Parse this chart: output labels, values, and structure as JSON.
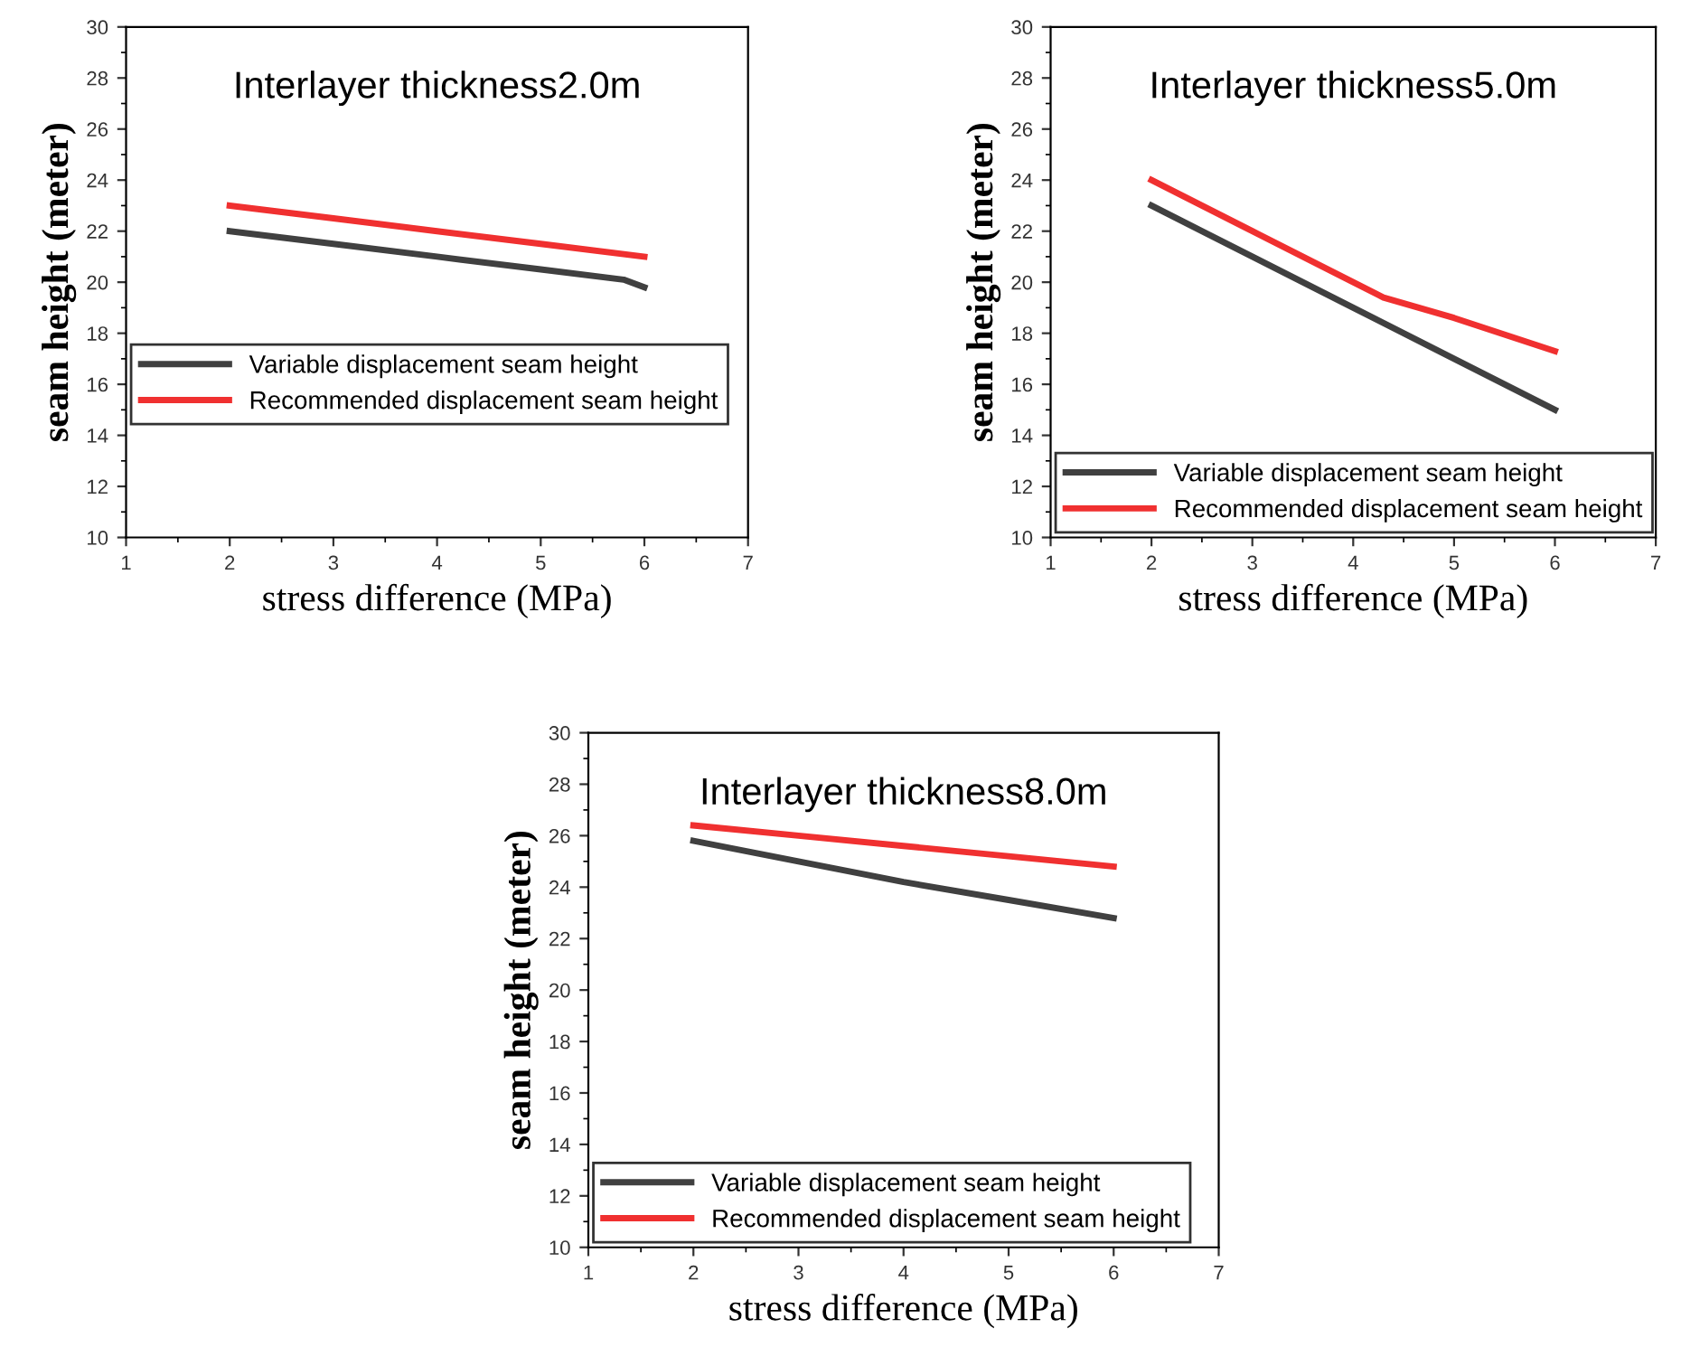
{
  "chart_data": [
    {
      "type": "line",
      "title": "Interlayer thickness2.0m",
      "xlabel": "stress difference (MPa)",
      "ylabel": "seam height (meter)",
      "xlim": [
        1,
        7
      ],
      "xticks": [
        1,
        2,
        3,
        4,
        5,
        6,
        7
      ],
      "ylim": [
        10,
        30
      ],
      "yticks": [
        10,
        12,
        14,
        16,
        18,
        20,
        22,
        24,
        26,
        28,
        30
      ],
      "legend": "left",
      "grid": false,
      "marker": "none",
      "line_style": "solid",
      "series": [
        {
          "name": "Variable displacement seam height",
          "color": "#404040",
          "x": [
            2,
            3,
            4,
            5,
            5.8,
            6
          ],
          "values": [
            22,
            21.5,
            21,
            20.5,
            20.1,
            19.8
          ]
        },
        {
          "name": "Recommended displacement seam height",
          "color": "#f03030",
          "x": [
            2,
            3,
            4,
            5,
            6
          ],
          "values": [
            23,
            22.5,
            22,
            21.5,
            21
          ]
        }
      ]
    },
    {
      "type": "line",
      "title": "Interlayer thickness5.0m",
      "xlabel": "stress difference (MPa)",
      "ylabel": "seam height (meter)",
      "xlim": [
        1,
        7
      ],
      "xticks": [
        1,
        2,
        3,
        4,
        5,
        6,
        7
      ],
      "ylim": [
        10,
        30
      ],
      "yticks": [
        10,
        12,
        14,
        16,
        18,
        20,
        22,
        24,
        26,
        28,
        30
      ],
      "legend": "bottom left",
      "grid": false,
      "marker": "none",
      "line_style": "solid",
      "series": [
        {
          "name": "Variable displacement seam height",
          "color": "#404040",
          "x": [
            2,
            3,
            4,
            5,
            6
          ],
          "values": [
            23,
            21,
            19,
            17,
            15
          ]
        },
        {
          "name": "Recommended displacement seam height",
          "color": "#f03030",
          "x": [
            2,
            3,
            4,
            4.3,
            5,
            6
          ],
          "values": [
            24,
            22,
            20,
            19.4,
            18.6,
            17.3
          ]
        }
      ]
    },
    {
      "type": "line",
      "title": "Interlayer thickness8.0m",
      "xlabel": "stress difference (MPa)",
      "ylabel": "seam height (meter)",
      "xlim": [
        1,
        7
      ],
      "xticks": [
        1,
        2,
        3,
        4,
        5,
        6,
        7
      ],
      "ylim": [
        10,
        30
      ],
      "yticks": [
        10,
        12,
        14,
        16,
        18,
        20,
        22,
        24,
        26,
        28,
        30
      ],
      "legend": "bottom left",
      "grid": false,
      "marker": "none",
      "line_style": "solid",
      "series": [
        {
          "name": "Variable displacement seam height",
          "color": "#404040",
          "x": [
            2,
            3,
            4,
            5,
            6
          ],
          "values": [
            25.8,
            25.0,
            24.2,
            23.5,
            22.8
          ]
        },
        {
          "name": "Recommended displacement seam height",
          "color": "#f03030",
          "x": [
            2,
            3,
            4,
            5,
            6
          ],
          "values": [
            26.4,
            26.0,
            25.6,
            25.2,
            24.8
          ]
        }
      ]
    }
  ]
}
